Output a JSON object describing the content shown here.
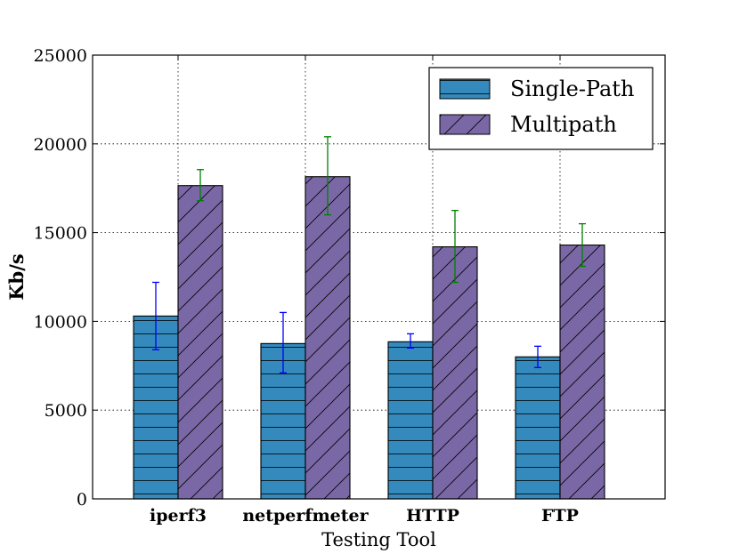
{
  "chart_data": {
    "type": "bar",
    "title": "",
    "xlabel": "Testing Tool",
    "ylabel": "Kb/s",
    "categories": [
      "iperf3",
      "netperfmeter",
      "HTTP",
      "FTP"
    ],
    "ylim": [
      0,
      25000
    ],
    "yticks": [
      0,
      5000,
      10000,
      15000,
      20000,
      25000
    ],
    "grid": true,
    "legend_position": "top-right",
    "series": [
      {
        "name": "Single-Path",
        "values": [
          10300,
          8750,
          8850,
          8000
        ],
        "err_low": [
          8400,
          7100,
          8500,
          7400
        ],
        "err_high": [
          12200,
          10500,
          9300,
          8600
        ],
        "color": "#348abd",
        "hatch": "horizontal",
        "error_color": "#0000ff"
      },
      {
        "name": "Multipath",
        "values": [
          17650,
          18150,
          14200,
          14300
        ],
        "err_low": [
          16800,
          16000,
          12200,
          13100
        ],
        "err_high": [
          18550,
          20400,
          16250,
          15500
        ],
        "color": "#7a68a6",
        "hatch": "diagonal",
        "error_color": "#008000"
      }
    ]
  }
}
